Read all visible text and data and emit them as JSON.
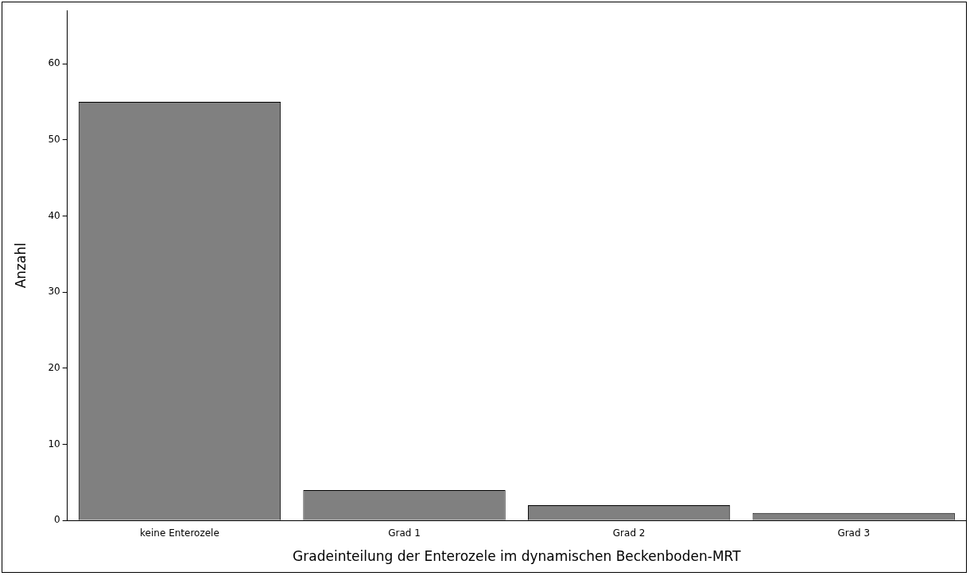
{
  "chart_data": {
    "type": "bar",
    "xlabel": "Gradeinteilung der Enterozele im dynamischen Beckenboden-MRT",
    "ylabel": "Anzahl",
    "categories": [
      "keine Enterozele",
      "Grad 1",
      "Grad 2",
      "Grad 3"
    ],
    "values": [
      55,
      4,
      2,
      1
    ],
    "color": "#808080",
    "ylim": [
      0,
      67
    ],
    "yticks": [
      0,
      10,
      20,
      30,
      40,
      50,
      60
    ],
    "grid": false,
    "legend": false
  }
}
